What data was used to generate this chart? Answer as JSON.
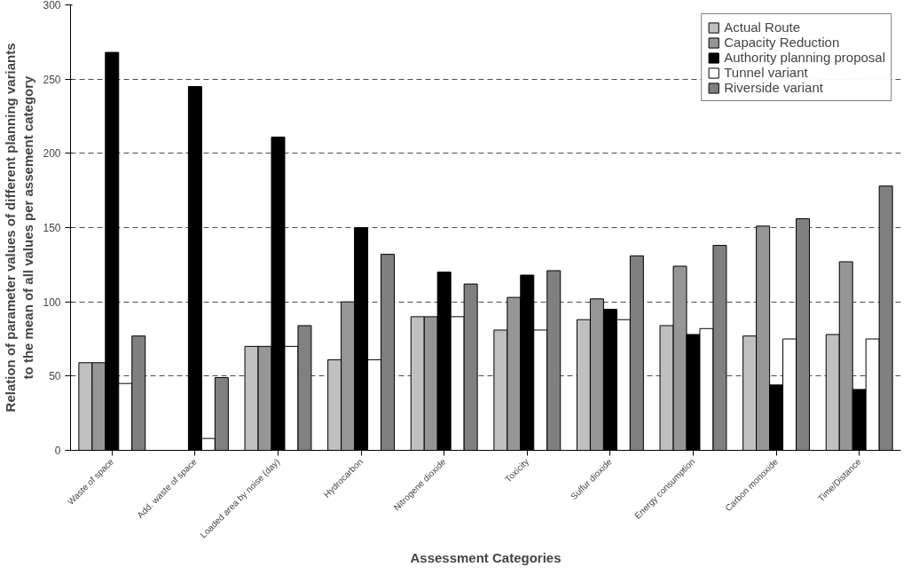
{
  "chart_data": {
    "type": "bar",
    "xlabel": "Assessment Categories",
    "ylabel": "Relation of parameter values of different planning variants to the mean of all values per assement category",
    "categories": [
      "Waste of space",
      "Add. waste of space",
      "Loaded area by noise (day)",
      "Hydrocarbon",
      "Nitrogene dioxide",
      "Toxicity",
      "Sulfur dioxide",
      "Energy consumption",
      "Carbon monoxide",
      "Time/Distance"
    ],
    "series": [
      {
        "name": "Actual Route",
        "color": "#c0c0c0",
        "values": [
          59,
          null,
          70,
          61,
          90,
          81,
          88,
          84,
          77,
          78
        ]
      },
      {
        "name": "Capacity Reduction",
        "color": "#969696",
        "values": [
          59,
          null,
          70,
          100,
          90,
          103,
          102,
          124,
          151,
          127
        ]
      },
      {
        "name": "Authority planning proposal",
        "color": "#000000",
        "values": [
          268,
          245,
          211,
          150,
          120,
          118,
          95,
          78,
          44,
          41
        ]
      },
      {
        "name": "Tunnel variant",
        "color": "#ffffff",
        "values": [
          45,
          8,
          70,
          61,
          90,
          81,
          88,
          82,
          75,
          75
        ]
      },
      {
        "name": "Riverside variant",
        "color": "#808080",
        "values": [
          77,
          49,
          84,
          132,
          112,
          121,
          131,
          138,
          156,
          178
        ]
      }
    ],
    "ylim": [
      0,
      300
    ],
    "yticks": [
      0,
      50,
      100,
      150,
      200,
      250,
      300
    ],
    "grid": "y",
    "legend": "top right"
  }
}
